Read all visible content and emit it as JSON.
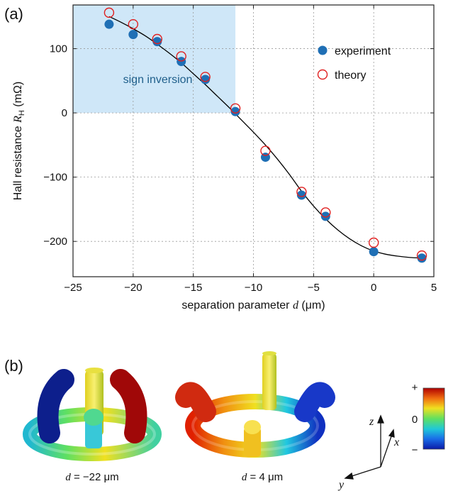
{
  "panel_a": {
    "label": "(a)"
  },
  "panel_b": {
    "label": "(b)",
    "captions": [
      {
        "var": "d",
        "text": " = −22 μm"
      },
      {
        "var": "d",
        "text": " = 4 μm"
      }
    ],
    "colorbar": {
      "max_label": "+",
      "mid_label": "0",
      "min_label": "−",
      "colors": [
        "#0a1aa8",
        "#1a6ee8",
        "#20c8d8",
        "#60e060",
        "#f0e020",
        "#f07010",
        "#b00000"
      ]
    },
    "axes_letters": {
      "z": "z",
      "x": "x",
      "y": "y"
    }
  },
  "chart_data": {
    "type": "scatter",
    "title": "",
    "xlabel_prefix": "separation parameter ",
    "xlabel_var": "d",
    "xlabel_suffix": " (μm)",
    "ylabel_prefix": "Hall resistance ",
    "ylabel_var": "R",
    "ylabel_sub": "H",
    "ylabel_suffix": " (mΩ)",
    "xlim": [
      -25,
      5
    ],
    "ylim": [
      -255,
      168
    ],
    "xticks": [
      -25,
      -20,
      -15,
      -10,
      -5,
      0,
      5
    ],
    "xtick_labels": [
      "−25",
      "−20",
      "−15",
      "−10",
      "−5",
      "0",
      "5"
    ],
    "yticks": [
      -200,
      -100,
      0,
      100
    ],
    "ytick_labels": [
      "−200",
      "−100",
      "0",
      "100"
    ],
    "grid": true,
    "legend_position": "top-right",
    "series": [
      {
        "name": "experiment",
        "marker": "filled-circle",
        "color": "#1f6fb5",
        "x": [
          -22,
          -20,
          -18,
          -16,
          -14,
          -11.5,
          -9,
          -6,
          -4,
          0,
          4
        ],
        "y": [
          138,
          122,
          111,
          80,
          52,
          2,
          -69,
          -128,
          -161,
          -216,
          -226
        ]
      },
      {
        "name": "theory",
        "marker": "open-circle",
        "color": "#e02020",
        "x": [
          -22,
          -20,
          -18,
          -16,
          -14,
          -11.5,
          -9,
          -6,
          -4,
          0,
          4
        ],
        "y": [
          156,
          138,
          115,
          88,
          56,
          7,
          -59,
          -123,
          -155,
          -202,
          -222
        ]
      }
    ],
    "fit_curve": {
      "color": "#000000",
      "x": [
        -22,
        -21,
        -20,
        -19,
        -18,
        -17,
        -16,
        -15,
        -14,
        -13,
        -12,
        -11,
        -10,
        -9,
        -8,
        -7,
        -6,
        -5,
        -4,
        -3,
        -2,
        -1,
        0,
        1,
        2,
        3,
        4
      ],
      "y": [
        150,
        141,
        131,
        120,
        107,
        93,
        78,
        61,
        44,
        26,
        8,
        -11,
        -30,
        -50,
        -72,
        -96,
        -122,
        -145,
        -165,
        -182,
        -196,
        -207,
        -215,
        -220,
        -223,
        -225,
        -226
      ]
    },
    "shaded_region": {
      "label": "sign inversion",
      "x": [
        -25,
        -11.5
      ],
      "y": [
        0,
        168
      ],
      "color": "#cfe7f8"
    }
  }
}
